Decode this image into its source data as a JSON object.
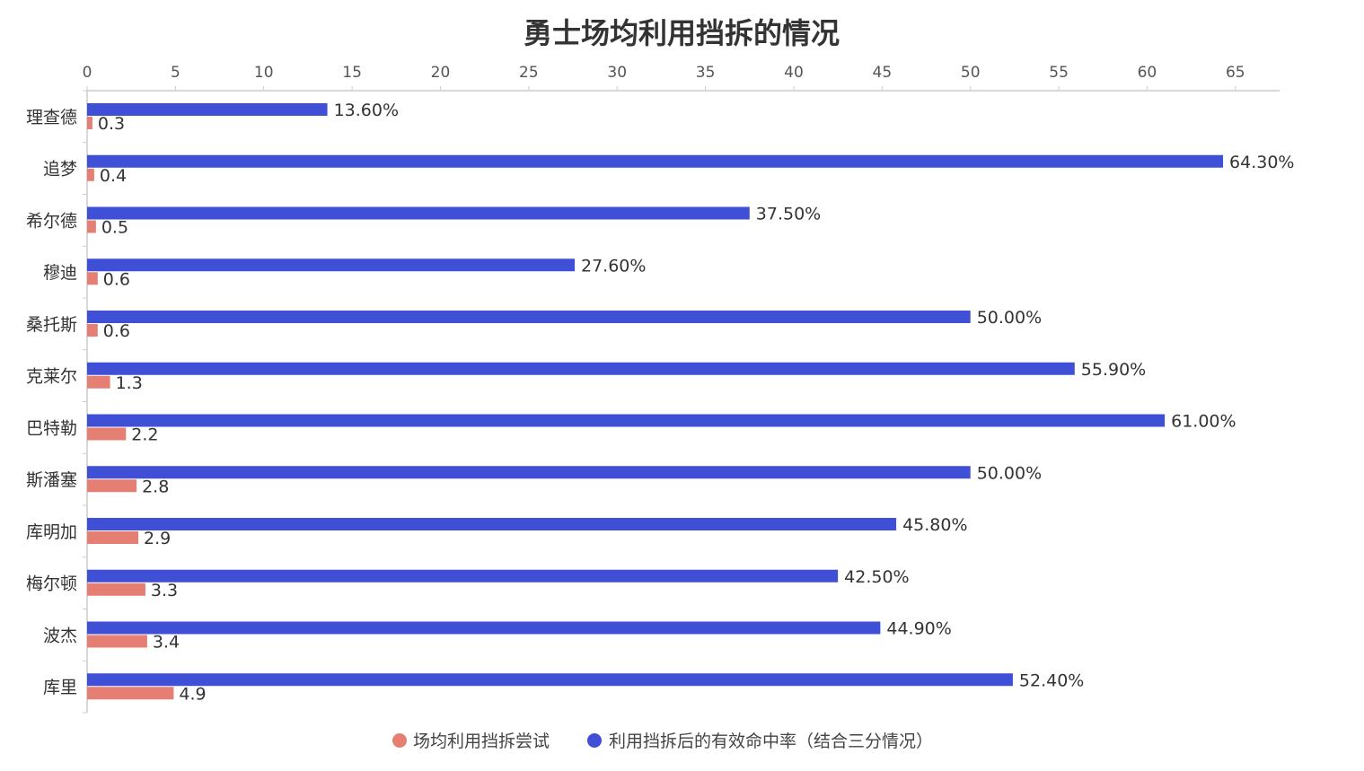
{
  "chart_data": {
    "type": "bar",
    "orientation": "horizontal",
    "title": "勇士场均利用挡拆的情况",
    "xlabel": "",
    "ylabel": "",
    "xlim": [
      0,
      67.5
    ],
    "x_ticks": [
      0,
      5,
      10,
      15,
      20,
      25,
      30,
      35,
      40,
      45,
      50,
      55,
      60,
      65
    ],
    "x_axis_position": "top",
    "grid": false,
    "legend_position": "bottom-center",
    "categories": [
      "理查德",
      "追梦",
      "希尔德",
      "穆迪",
      "桑托斯",
      "克莱尔",
      "巴特勒",
      "斯潘塞",
      "库明加",
      "梅尔顿",
      "波杰",
      "库里"
    ],
    "series": [
      {
        "name": "利用挡拆后的有效命中率（结合三分情况）",
        "color": "#3f4fd6",
        "values": [
          13.6,
          64.3,
          37.5,
          27.6,
          50.0,
          55.9,
          61.0,
          50.0,
          45.8,
          42.5,
          44.9,
          52.4
        ],
        "labels": [
          "13.60%",
          "64.30%",
          "37.50%",
          "27.60%",
          "50.00%",
          "55.90%",
          "61.00%",
          "50.00%",
          "45.80%",
          "42.50%",
          "44.90%",
          "52.40%"
        ]
      },
      {
        "name": "场均利用挡拆尝试",
        "color": "#e57f73",
        "values": [
          0.3,
          0.4,
          0.5,
          0.6,
          0.6,
          1.3,
          2.2,
          2.8,
          2.9,
          3.3,
          3.4,
          4.9
        ],
        "labels": [
          "0.3",
          "0.4",
          "0.5",
          "0.6",
          "0.6",
          "1.3",
          "2.2",
          "2.8",
          "2.9",
          "3.3",
          "3.4",
          "4.9"
        ]
      }
    ],
    "legend_order": [
      1,
      0
    ]
  }
}
